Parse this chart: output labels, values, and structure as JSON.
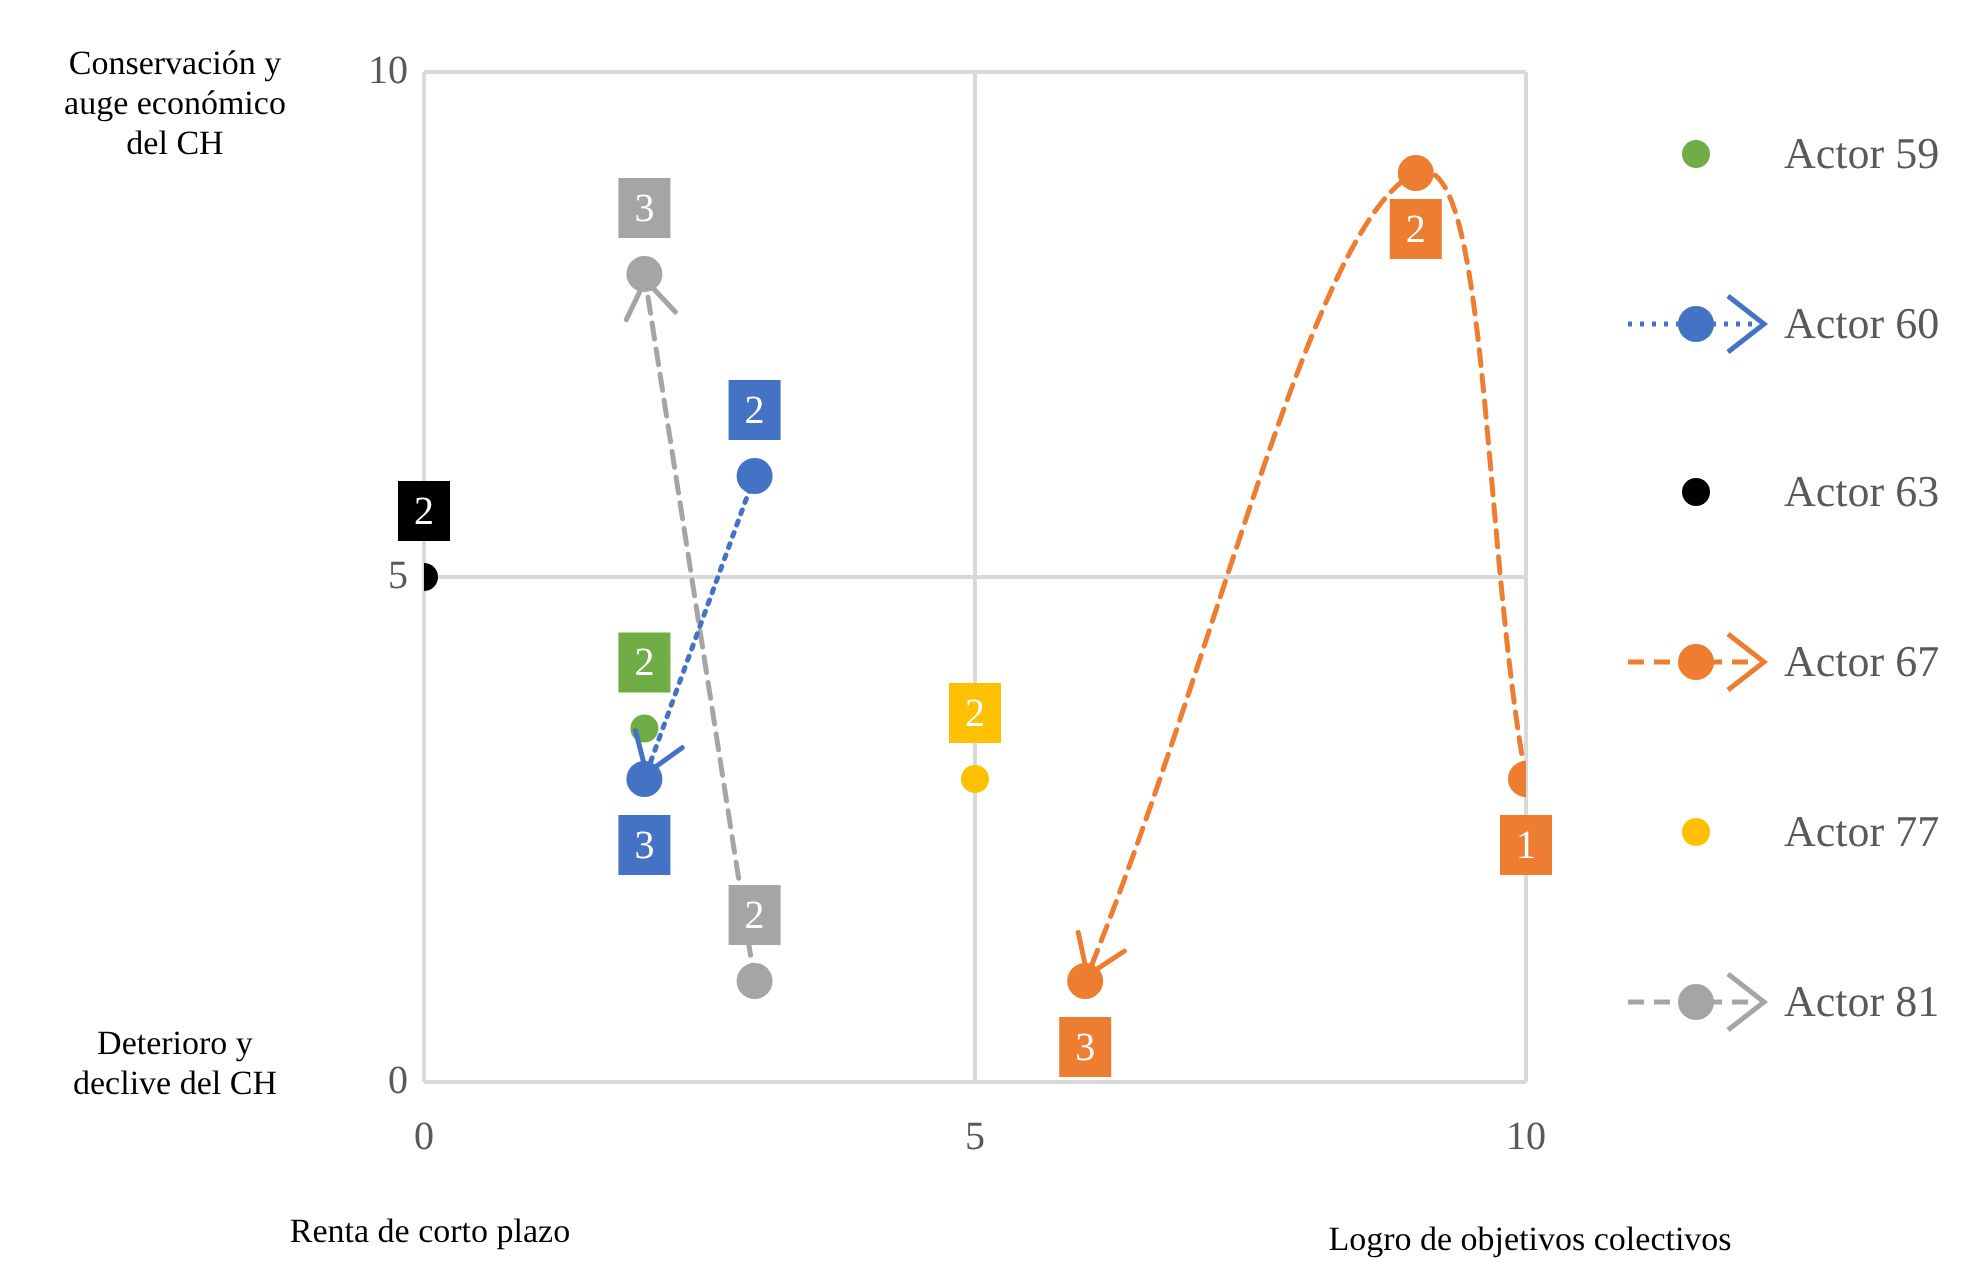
{
  "chart_data": {
    "type": "scatter",
    "xlim": [
      0,
      10
    ],
    "ylim": [
      0,
      10
    ],
    "xticks": [
      0,
      5,
      10
    ],
    "yticks": [
      0,
      5,
      10
    ],
    "grid": true,
    "legend": "right",
    "marker": "circle",
    "series": [
      {
        "name": "Actor 59",
        "color": "#70ad47",
        "type": "scatter",
        "x": [
          2
        ],
        "values": [
          3.5
        ]
      },
      {
        "name": "Actor 60",
        "color": "#4472c4",
        "type": "line",
        "line_style": "dotted",
        "x": [
          3,
          2
        ],
        "values": [
          6,
          3
        ]
      },
      {
        "name": "Actor 63",
        "color": "#000000",
        "type": "scatter",
        "x": [
          0
        ],
        "values": [
          5
        ]
      },
      {
        "name": "Actor 67",
        "color": "#ed7d31",
        "type": "line",
        "line_style": "dashed",
        "x": [
          10,
          9,
          6
        ],
        "values": [
          3,
          9,
          1
        ]
      },
      {
        "name": "Actor 77",
        "color": "#ffc000",
        "type": "scatter",
        "x": [
          5
        ],
        "values": [
          3
        ]
      },
      {
        "name": "Actor 81",
        "color": "#a5a5a5",
        "type": "line",
        "line_style": "dashed",
        "x": [
          3,
          2
        ],
        "values": [
          1,
          8
        ]
      }
    ],
    "annotations": [
      "Conservación y auge económico del CH",
      "Deterioro y declive del CH",
      "Renta de corto plazo",
      "Logro de objetivos colectivos",
      {
        "text": "2",
        "x": 2,
        "y": 3.5
      },
      {
        "text": "3",
        "x": 2,
        "y": 3
      },
      {
        "text": "2",
        "x": 3,
        "y": 6
      },
      {
        "text": "2",
        "x": 0,
        "y": 5
      },
      {
        "text": "1",
        "x": 10,
        "y": 3
      },
      {
        "text": "2",
        "x": 9,
        "y": 9
      },
      {
        "text": "3",
        "x": 6,
        "y": 1
      },
      {
        "text": "2",
        "x": 5,
        "y": 3
      },
      {
        "text": "2",
        "x": 3,
        "y": 1
      },
      {
        "text": "3",
        "x": 2,
        "y": 8
      }
    ]
  }
}
